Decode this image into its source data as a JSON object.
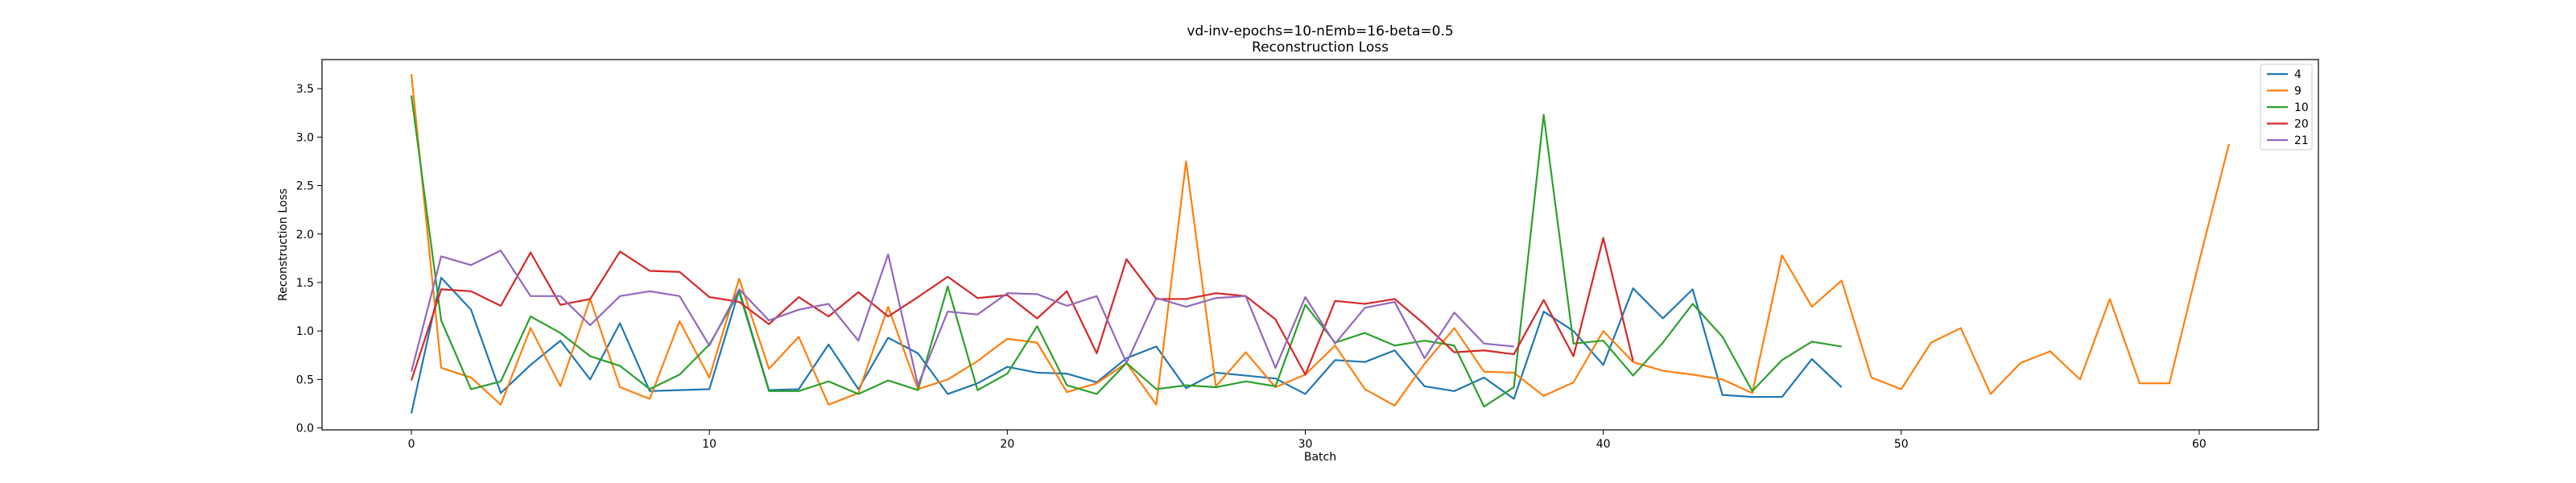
{
  "chart_data": {
    "type": "line",
    "title": "vd-inv-epochs=10-nEmb=16-beta=0.5",
    "subtitle": "Reconstruction Loss",
    "xlabel": "Batch",
    "ylabel": "Reconstruction Loss",
    "xlim": [
      -3,
      64
    ],
    "ylim": [
      -0.02,
      3.8
    ],
    "x_ticks": [
      0,
      10,
      20,
      30,
      40,
      50,
      60
    ],
    "y_ticks": [
      0.0,
      0.5,
      1.0,
      1.5,
      2.0,
      2.5,
      3.0,
      3.5
    ],
    "x_tick_labels": [
      "0",
      "10",
      "20",
      "30",
      "40",
      "50",
      "60"
    ],
    "y_tick_labels": [
      "0.0",
      "0.5",
      "1.0",
      "1.5",
      "2.0",
      "2.5",
      "3.0",
      "3.5"
    ],
    "grid": false,
    "legend_position": "top-right",
    "series": [
      {
        "name": "4",
        "color": "#1f77b4",
        "values": [
          0.15,
          1.55,
          1.22,
          0.36,
          0.65,
          0.9,
          0.5,
          1.08,
          0.38,
          0.39,
          0.4,
          1.42,
          0.39,
          0.4,
          0.86,
          0.4,
          0.93,
          0.77,
          0.35,
          0.46,
          0.63,
          0.57,
          0.56,
          0.47,
          0.72,
          0.84,
          0.41,
          0.57,
          0.54,
          0.51,
          0.35,
          0.7,
          0.68,
          0.8,
          0.43,
          0.38,
          0.52,
          0.3,
          1.2,
          1.0,
          0.65,
          1.44,
          1.13,
          1.43,
          0.34,
          0.32,
          0.32,
          0.71,
          0.42
        ]
      },
      {
        "name": "9",
        "color": "#ff7f0e",
        "values": [
          3.65,
          0.62,
          0.52,
          0.24,
          1.03,
          0.43,
          1.33,
          0.42,
          0.3,
          1.1,
          0.52,
          1.54,
          0.61,
          0.94,
          0.24,
          0.36,
          1.25,
          0.4,
          0.5,
          0.69,
          0.92,
          0.88,
          0.37,
          0.46,
          0.67,
          0.24,
          2.75,
          0.43,
          0.78,
          0.42,
          0.55,
          0.85,
          0.4,
          0.23,
          0.66,
          1.03,
          0.58,
          0.57,
          0.33,
          0.47,
          1.0,
          0.68,
          0.59,
          0.55,
          0.5,
          0.36,
          1.78,
          1.25,
          1.52,
          0.52,
          0.4,
          0.88,
          1.03,
          0.35,
          0.67,
          0.79,
          0.5,
          1.33,
          0.46,
          0.46,
          1.72,
          2.93
        ]
      },
      {
        "name": "10",
        "color": "#2ca02c",
        "values": [
          3.43,
          1.11,
          0.4,
          0.48,
          1.15,
          0.98,
          0.74,
          0.64,
          0.4,
          0.55,
          0.86,
          1.4,
          0.38,
          0.38,
          0.48,
          0.35,
          0.49,
          0.39,
          1.46,
          0.39,
          0.56,
          1.05,
          0.44,
          0.35,
          0.67,
          0.4,
          0.44,
          0.42,
          0.48,
          0.43,
          1.27,
          0.88,
          0.98,
          0.85,
          0.9,
          0.85,
          0.22,
          0.42,
          3.23,
          0.87,
          0.9,
          0.54,
          0.88,
          1.28,
          0.94,
          0.38,
          0.7,
          0.89,
          0.84
        ]
      },
      {
        "name": "20",
        "color": "#d62728",
        "values": [
          0.49,
          1.43,
          1.41,
          1.26,
          1.81,
          1.27,
          1.33,
          1.82,
          1.62,
          1.61,
          1.35,
          1.3,
          1.07,
          1.35,
          1.15,
          1.4,
          1.15,
          1.35,
          1.56,
          1.34,
          1.37,
          1.13,
          1.41,
          0.77,
          1.74,
          1.33,
          1.33,
          1.39,
          1.36,
          1.12,
          0.55,
          1.31,
          1.28,
          1.33,
          1.07,
          0.78,
          0.8,
          0.76,
          1.32,
          0.74,
          1.96,
          0.69
        ]
      },
      {
        "name": "21",
        "color": "#9467bd",
        "values": [
          0.58,
          1.77,
          1.68,
          1.83,
          1.36,
          1.36,
          1.06,
          1.36,
          1.41,
          1.36,
          0.85,
          1.43,
          1.11,
          1.22,
          1.28,
          0.9,
          1.79,
          0.44,
          1.2,
          1.17,
          1.39,
          1.38,
          1.26,
          1.36,
          0.67,
          1.34,
          1.25,
          1.34,
          1.36,
          0.62,
          1.35,
          0.87,
          1.24,
          1.3,
          0.72,
          1.19,
          0.87,
          0.84
        ]
      }
    ]
  }
}
